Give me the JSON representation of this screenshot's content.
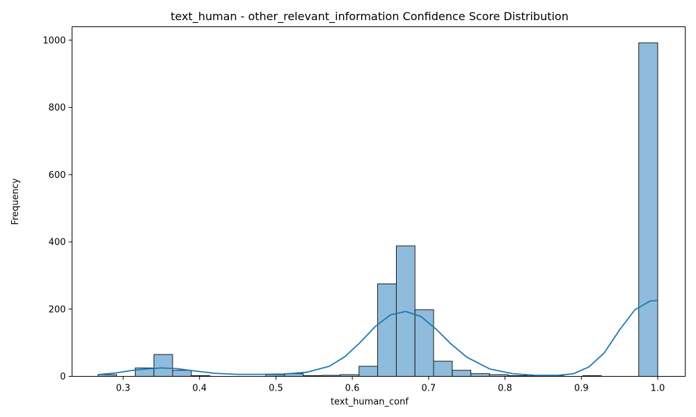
{
  "chart_data": {
    "type": "bar",
    "title": "text_human - other_relevant_information Confidence Score Distribution",
    "xlabel": "text_human_conf",
    "ylabel": "Frequency",
    "xlim": [
      0.233,
      1.036
    ],
    "ylim": [
      0,
      1040
    ],
    "xticks": [
      "0.3",
      "0.4",
      "0.5",
      "0.6",
      "0.7",
      "0.8",
      "0.9",
      "1.0"
    ],
    "xtick_values": [
      0.3,
      0.4,
      0.5,
      0.6,
      0.7,
      0.8,
      0.9,
      1.0
    ],
    "yticks": [
      "0",
      "200",
      "400",
      "600",
      "800",
      "1000"
    ],
    "ytick_values": [
      0,
      200,
      400,
      600,
      800,
      1000
    ],
    "bins": {
      "edges": [
        0.267,
        0.2914,
        0.3158,
        0.3402,
        0.3647,
        0.3891,
        0.4135,
        0.4379,
        0.4623,
        0.4867,
        0.5112,
        0.5356,
        0.56,
        0.5844,
        0.6088,
        0.6332,
        0.6577,
        0.6821,
        0.7065,
        0.7309,
        0.7553,
        0.7797,
        0.8042,
        0.8286,
        0.853,
        0.8774,
        0.9018,
        0.9262,
        0.9507,
        0.9751,
        1.0
      ],
      "counts": [
        5,
        0,
        25,
        65,
        18,
        2,
        0,
        0,
        0,
        5,
        8,
        2,
        3,
        5,
        30,
        275,
        388,
        198,
        45,
        18,
        8,
        5,
        2,
        1,
        1,
        0,
        2,
        0,
        0,
        992
      ]
    },
    "kde": {
      "x": [
        0.267,
        0.29,
        0.31,
        0.33,
        0.35,
        0.37,
        0.39,
        0.42,
        0.45,
        0.48,
        0.51,
        0.54,
        0.57,
        0.59,
        0.61,
        0.63,
        0.65,
        0.67,
        0.69,
        0.71,
        0.73,
        0.75,
        0.78,
        0.81,
        0.84,
        0.87,
        0.89,
        0.91,
        0.93,
        0.95,
        0.97,
        0.99,
        1.0
      ],
      "y": [
        5,
        10,
        17,
        22,
        25,
        23,
        17,
        9,
        6,
        6,
        7,
        12,
        30,
        58,
        100,
        148,
        183,
        193,
        178,
        140,
        95,
        57,
        22,
        8,
        3,
        3,
        8,
        28,
        70,
        138,
        198,
        224,
        226
      ]
    },
    "colors": {
      "bar_fill": "#8fbcdc",
      "bar_edge": "#1a1a1a",
      "kde_line": "#1f77b4"
    }
  }
}
